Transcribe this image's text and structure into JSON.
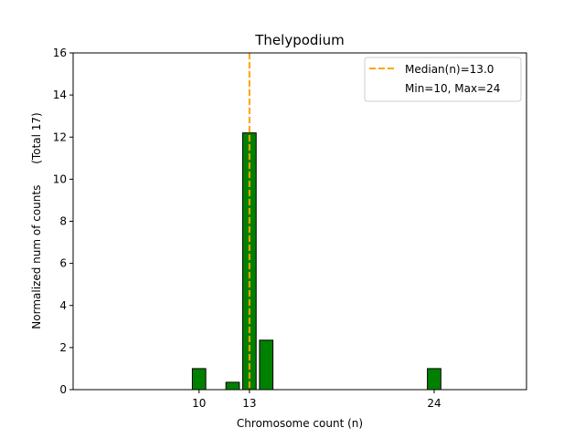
{
  "chart_data": {
    "type": "bar",
    "title": "Thelypodium",
    "xlabel": "Chromosome count (n)",
    "ylabel": "Normalized num of counts      (Total 17)",
    "xlim": [
      2.5,
      29.5
    ],
    "ylim": [
      0,
      16
    ],
    "yticks": [
      0,
      2,
      4,
      6,
      8,
      10,
      12,
      14,
      16
    ],
    "xticks": [
      10,
      13,
      24
    ],
    "bar_width": 0.8,
    "bars": [
      {
        "x": 10,
        "value": 1.0
      },
      {
        "x": 12,
        "value": 0.35
      },
      {
        "x": 13,
        "value": 12.2
      },
      {
        "x": 14,
        "value": 2.35
      },
      {
        "x": 24,
        "value": 1.0
      }
    ],
    "median_line": {
      "x": 13.0,
      "label": "Median(n)=13.0"
    },
    "legend": {
      "position": "top-right",
      "entries": [
        "Median(n)=13.0",
        "Min=10, Max=24"
      ]
    },
    "colors": {
      "bar_fill": "#008000",
      "bar_edge": "#000000",
      "median": "#FFA500"
    }
  }
}
